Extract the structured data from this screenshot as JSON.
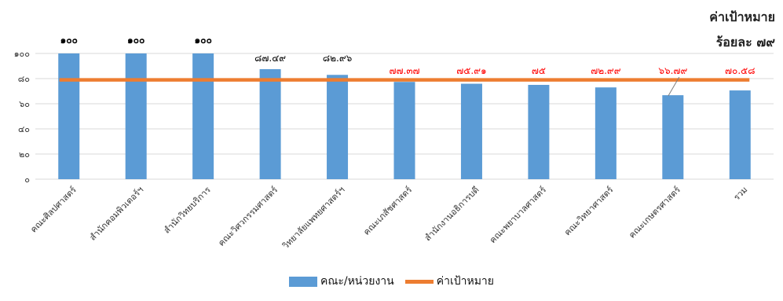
{
  "chart_data": {
    "type": "bar",
    "categories": [
      "คณะศิลปศาสตร์",
      "สำนักคอมพิวเตอร์ฯ",
      "สำนักวิทยบริการ",
      "คณะวิศวกรรมศาสตร์",
      "วิทยาลัยแพทยศาสตร์ฯ",
      "คณะเภสัชศาสตร์",
      "สำนักงานอธิการบดี",
      "คณะพยาบาลศาสตร์",
      "คณะวิทยาศาสตร์",
      "คณะเกษตรศาสตร์",
      "รวม"
    ],
    "values": [
      100,
      100,
      100,
      87.49,
      82.96,
      77.37,
      75.91,
      75,
      72.99,
      66.79,
      70.58
    ],
    "value_labels": [
      "๑๐๐",
      "๑๐๐",
      "๑๐๐",
      "๘๗.๔๙",
      "๘๒.๙๖",
      "๗๗.๓๗",
      "๗๕.๙๑",
      "๗๕",
      "๗๒.๙๙",
      "๖๖.๗๙",
      "๗๐.๕๘"
    ],
    "label_colors": [
      "#000000",
      "#000000",
      "#000000",
      "#000000",
      "#000000",
      "#FF0000",
      "#FF0000",
      "#FF0000",
      "#FF0000",
      "#FF0000",
      "#FF0000"
    ],
    "series": [
      {
        "name": "คณะ/หน่วยงาน",
        "color": "#5B9BD5"
      },
      {
        "name": "ค่าเป้าหมาย",
        "color": "#ED7D31",
        "value": 79
      }
    ],
    "target": 79,
    "ylim": [
      0,
      100
    ],
    "yticks": [
      0,
      20,
      40,
      60,
      80,
      100
    ],
    "ytick_labels": [
      "๐",
      "๒๐",
      "๔๐",
      "๖๐",
      "๘๐",
      "๑๐๐"
    ],
    "grid": true,
    "legend_position": "bottom",
    "annotation": [
      "ค่าเป้าหมาย",
      "ร้อยละ ๗๙"
    ]
  }
}
